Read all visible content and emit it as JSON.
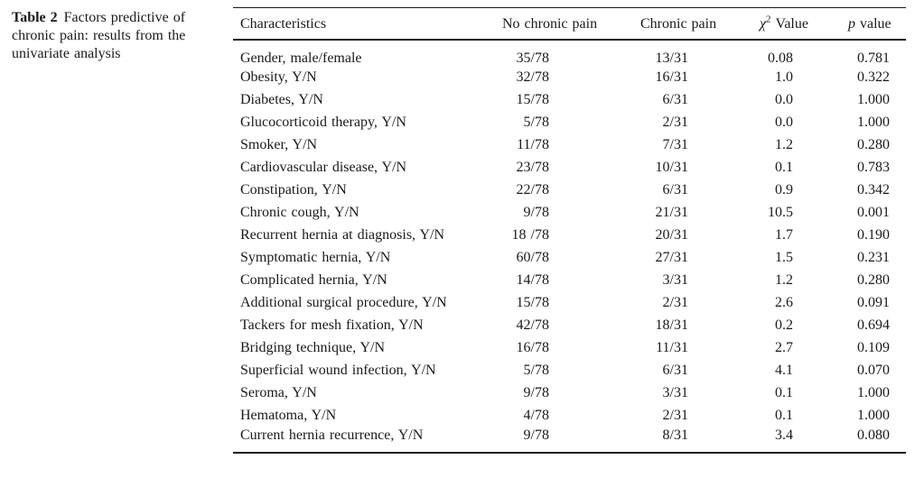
{
  "caption": {
    "label": "Table 2",
    "line1": "Factors predictive of",
    "line2": "chronic pain: results from the",
    "line3": "univariate analysis"
  },
  "table": {
    "text_color": "#1a1a1a",
    "rule_color": "#1a1a1a",
    "columns": [
      {
        "label": "Characteristics"
      },
      {
        "label": "No chronic pain"
      },
      {
        "label": "Chronic pain"
      },
      {
        "symbol": "χ",
        "sup": "2",
        "label": "Value"
      },
      {
        "symbol": "p",
        "label": "value"
      }
    ],
    "rows": [
      {
        "characteristic": "Gender, male/female",
        "no_chronic_pain": "35/78",
        "chronic_pain": "13/31",
        "chi2_value": "0.08",
        "p_value": "0.781"
      },
      {
        "characteristic": "Obesity, Y/N",
        "no_chronic_pain": "32/78",
        "chronic_pain": "16/31",
        "chi2_value": "1.0",
        "p_value": "0.322"
      },
      {
        "characteristic": "Diabetes, Y/N",
        "no_chronic_pain": "15/78",
        "chronic_pain": "6/31",
        "chi2_value": "0.0",
        "p_value": "1.000"
      },
      {
        "characteristic": "Glucocorticoid therapy, Y/N",
        "no_chronic_pain": "5/78",
        "chronic_pain": "2/31",
        "chi2_value": "0.0",
        "p_value": "1.000"
      },
      {
        "characteristic": "Smoker, Y/N",
        "no_chronic_pain": "11/78",
        "chronic_pain": "7/31",
        "chi2_value": "1.2",
        "p_value": "0.280"
      },
      {
        "characteristic": "Cardiovascular disease, Y/N",
        "no_chronic_pain": "23/78",
        "chronic_pain": "10/31",
        "chi2_value": "0.1",
        "p_value": "0.783"
      },
      {
        "characteristic": "Constipation, Y/N",
        "no_chronic_pain": "22/78",
        "chronic_pain": "6/31",
        "chi2_value": "0.9",
        "p_value": "0.342"
      },
      {
        "characteristic": "Chronic cough, Y/N",
        "no_chronic_pain": "9/78",
        "chronic_pain": "21/31",
        "chi2_value": "10.5",
        "p_value": "0.001"
      },
      {
        "characteristic": "Recurrent hernia at diagnosis, Y/N",
        "no_chronic_pain": "18 /78",
        "chronic_pain": "20/31",
        "chi2_value": "1.7",
        "p_value": "0.190"
      },
      {
        "characteristic": "Symptomatic hernia, Y/N",
        "no_chronic_pain": "60/78",
        "chronic_pain": "27/31",
        "chi2_value": "1.5",
        "p_value": "0.231"
      },
      {
        "characteristic": "Complicated hernia, Y/N",
        "no_chronic_pain": "14/78",
        "chronic_pain": "3/31",
        "chi2_value": "1.2",
        "p_value": "0.280"
      },
      {
        "characteristic": "Additional surgical procedure, Y/N",
        "no_chronic_pain": "15/78",
        "chronic_pain": "2/31",
        "chi2_value": "2.6",
        "p_value": "0.091"
      },
      {
        "characteristic": "Tackers for mesh fixation, Y/N",
        "no_chronic_pain": "42/78",
        "chronic_pain": "18/31",
        "chi2_value": "0.2",
        "p_value": "0.694"
      },
      {
        "characteristic": "Bridging technique, Y/N",
        "no_chronic_pain": "16/78",
        "chronic_pain": "11/31",
        "chi2_value": "2.7",
        "p_value": "0.109"
      },
      {
        "characteristic": "Superficial wound infection, Y/N",
        "no_chronic_pain": "5/78",
        "chronic_pain": "6/31",
        "chi2_value": "4.1",
        "p_value": "0.070"
      },
      {
        "characteristic": "Seroma, Y/N",
        "no_chronic_pain": "9/78",
        "chronic_pain": "3/31",
        "chi2_value": "0.1",
        "p_value": "1.000"
      },
      {
        "characteristic": "Hematoma, Y/N",
        "no_chronic_pain": "4/78",
        "chronic_pain": "2/31",
        "chi2_value": "0.1",
        "p_value": "1.000"
      },
      {
        "characteristic": "Current hernia recurrence, Y/N",
        "no_chronic_pain": "9/78",
        "chronic_pain": "8/31",
        "chi2_value": "3.4",
        "p_value": "0.080"
      }
    ]
  }
}
